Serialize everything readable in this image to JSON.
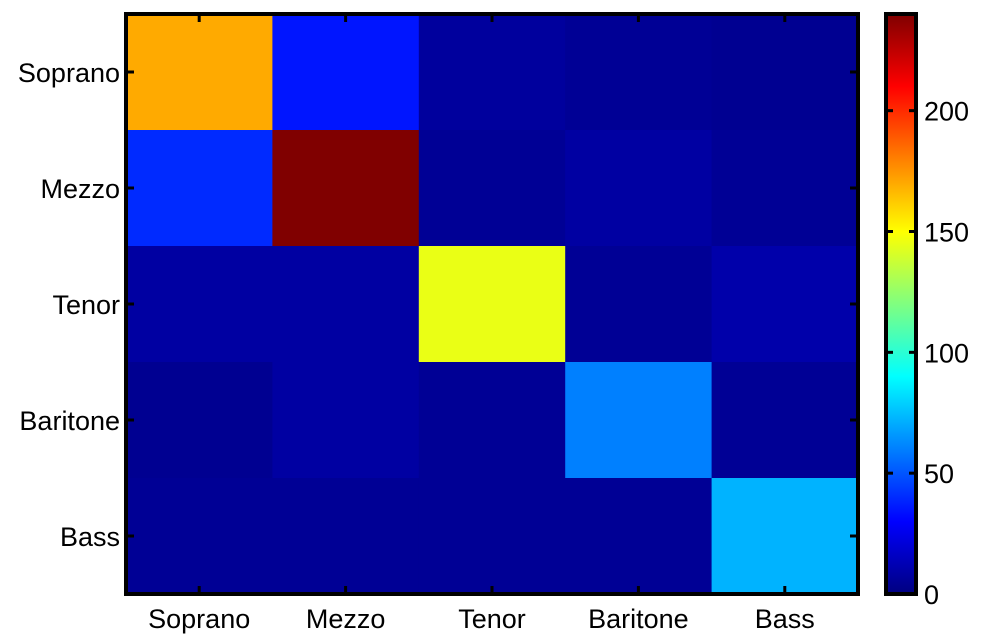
{
  "chart_data": {
    "type": "heatmap",
    "title": "",
    "xlabel": "",
    "ylabel": "",
    "x_categories": [
      "Soprano",
      "Mezzo",
      "Tenor",
      "Baritone",
      "Bass"
    ],
    "y_categories": [
      "Soprano",
      "Mezzo",
      "Tenor",
      "Baritone",
      "Bass"
    ],
    "values": [
      [
        170,
        35,
        7,
        5,
        4
      ],
      [
        40,
        240,
        5,
        8,
        5
      ],
      [
        8,
        8,
        145,
        5,
        10
      ],
      [
        4,
        8,
        5,
        60,
        5
      ],
      [
        5,
        5,
        5,
        5,
        72
      ]
    ],
    "colormap": "jet",
    "colorbar": {
      "min": 0,
      "max": 240,
      "ticks": [
        0,
        50,
        100,
        150,
        200
      ],
      "tick_labels": [
        "0",
        "50",
        "100",
        "150",
        "200"
      ]
    },
    "grid": false,
    "legend": "colorbar-right"
  }
}
